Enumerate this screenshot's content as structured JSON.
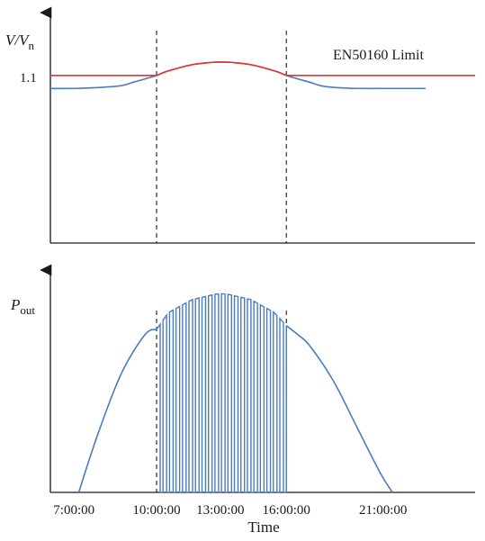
{
  "chart_data": [
    {
      "type": "line",
      "panel": "top",
      "ylabel_main": "V/V",
      "ylabel_sub": "n",
      "yticks": [
        {
          "value": 1.1,
          "label": "1.1"
        }
      ],
      "ylim": [
        0.9,
        1.175
      ],
      "xlim": [
        6,
        24
      ],
      "grid": false,
      "legend": "none",
      "annotations": [
        {
          "text": "EN50160 Limit",
          "x": 16.4,
          "y": 1.123
        }
      ],
      "vlines": [
        10.5,
        16
      ],
      "series": [
        {
          "name": "",
          "color": "#4a7cc0",
          "x": [
            6.0,
            7.0,
            8.0,
            9.0,
            9.5,
            10.0,
            10.5,
            11.0,
            12.0,
            12.8,
            13.25,
            13.7,
            14.5,
            15.5,
            16.0,
            16.5,
            17.0,
            17.5,
            18.0,
            18.5,
            19.0,
            20.0,
            21.0,
            21.5,
            21.9
          ],
          "y": [
            1.0845,
            1.0845,
            1.0855,
            1.0878,
            1.0918,
            1.0958,
            1.1,
            1.1054,
            1.1128,
            1.1155,
            1.116,
            1.1155,
            1.1128,
            1.1054,
            1.1,
            1.0958,
            1.0918,
            1.0875,
            1.0858,
            1.085,
            1.0845,
            1.0845,
            1.0845,
            1.0845,
            1.0845
          ]
        },
        {
          "name": "",
          "color": "#e8322a",
          "x": [
            6.0,
            10.5,
            11.0,
            12.0,
            12.8,
            13.25,
            13.7,
            14.5,
            15.5,
            16.0,
            24.0
          ],
          "y": [
            1.1,
            1.1,
            1.1054,
            1.1128,
            1.1155,
            1.116,
            1.1155,
            1.1128,
            1.1054,
            1.1,
            1.1
          ]
        }
      ]
    },
    {
      "type": "line",
      "panel": "bottom",
      "ylabel_main": "P",
      "ylabel_sub": "out",
      "xlabel": "Time",
      "xlim": [
        6,
        24
      ],
      "ylim": [
        0,
        1.2
      ],
      "xticks": [
        {
          "value": 7,
          "label": "7:00:00"
        },
        {
          "value": 10.5,
          "label": "10:00:00"
        },
        {
          "value": 13.2,
          "label": "13:00:00"
        },
        {
          "value": 16,
          "label": "16:00:00"
        },
        {
          "value": 20.1,
          "label": "21:00:00"
        }
      ],
      "grid": false,
      "legend": "none",
      "vlines": [
        10.5,
        16
      ],
      "series": [
        {
          "name": "",
          "color": "#4a7cc0",
          "envelope_x": [
            7.2,
            8.0,
            9.0,
            10.0,
            10.5,
            11.0,
            12.0,
            13.0,
            13.25,
            13.5,
            14.5,
            15.5,
            16.0,
            16.5,
            17.0,
            18.0,
            19.0,
            20.0,
            20.5
          ],
          "envelope_y": [
            0.0,
            0.31,
            0.64,
            0.85,
            0.88,
            0.97,
            1.04,
            1.07,
            1.072,
            1.07,
            1.04,
            0.97,
            0.9,
            0.85,
            0.79,
            0.6,
            0.35,
            0.1,
            0.0
          ],
          "curtailment_start": 10.5,
          "curtailment_end": 16.0,
          "curtailment_pulses": 20,
          "curtailment_min": 0.0
        }
      ]
    }
  ]
}
